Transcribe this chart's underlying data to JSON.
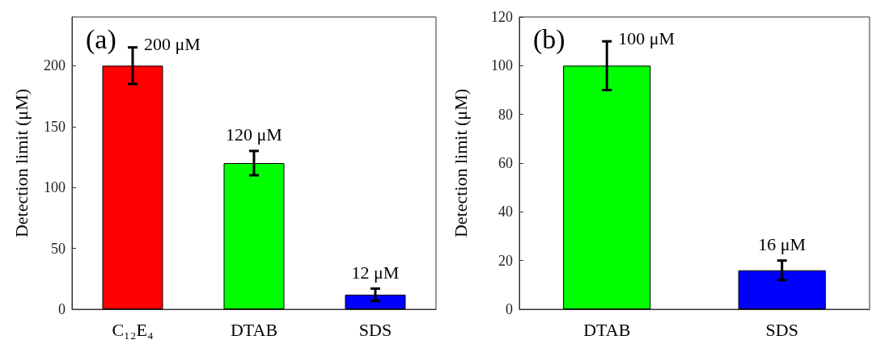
{
  "chart_data": [
    {
      "type": "bar",
      "title": "(a)",
      "ylabel": "Detection limit (μM)",
      "categories": [
        "C₁₂E₄",
        "DTAB",
        "SDS"
      ],
      "values": [
        200,
        120,
        12
      ],
      "colors": [
        "#ff0000",
        "#00ff00",
        "#0000ff"
      ],
      "errors": [
        15,
        10,
        5
      ],
      "value_labels": [
        "200 μM",
        "120 μM",
        "12 μM"
      ],
      "ylim": [
        0,
        240
      ],
      "yticks": [
        0,
        50,
        100,
        150,
        200
      ],
      "grid": false
    },
    {
      "type": "bar",
      "title": "(b)",
      "ylabel": "Detection limit (μM)",
      "categories": [
        "DTAB",
        "SDS"
      ],
      "values": [
        100,
        16
      ],
      "colors": [
        "#00ff00",
        "#0000ff"
      ],
      "errors": [
        10,
        4
      ],
      "value_labels": [
        "100 μM",
        "16 μM"
      ],
      "ylim": [
        0,
        120
      ],
      "yticks": [
        0,
        20,
        40,
        60,
        80,
        100,
        120
      ],
      "grid": false
    }
  ]
}
